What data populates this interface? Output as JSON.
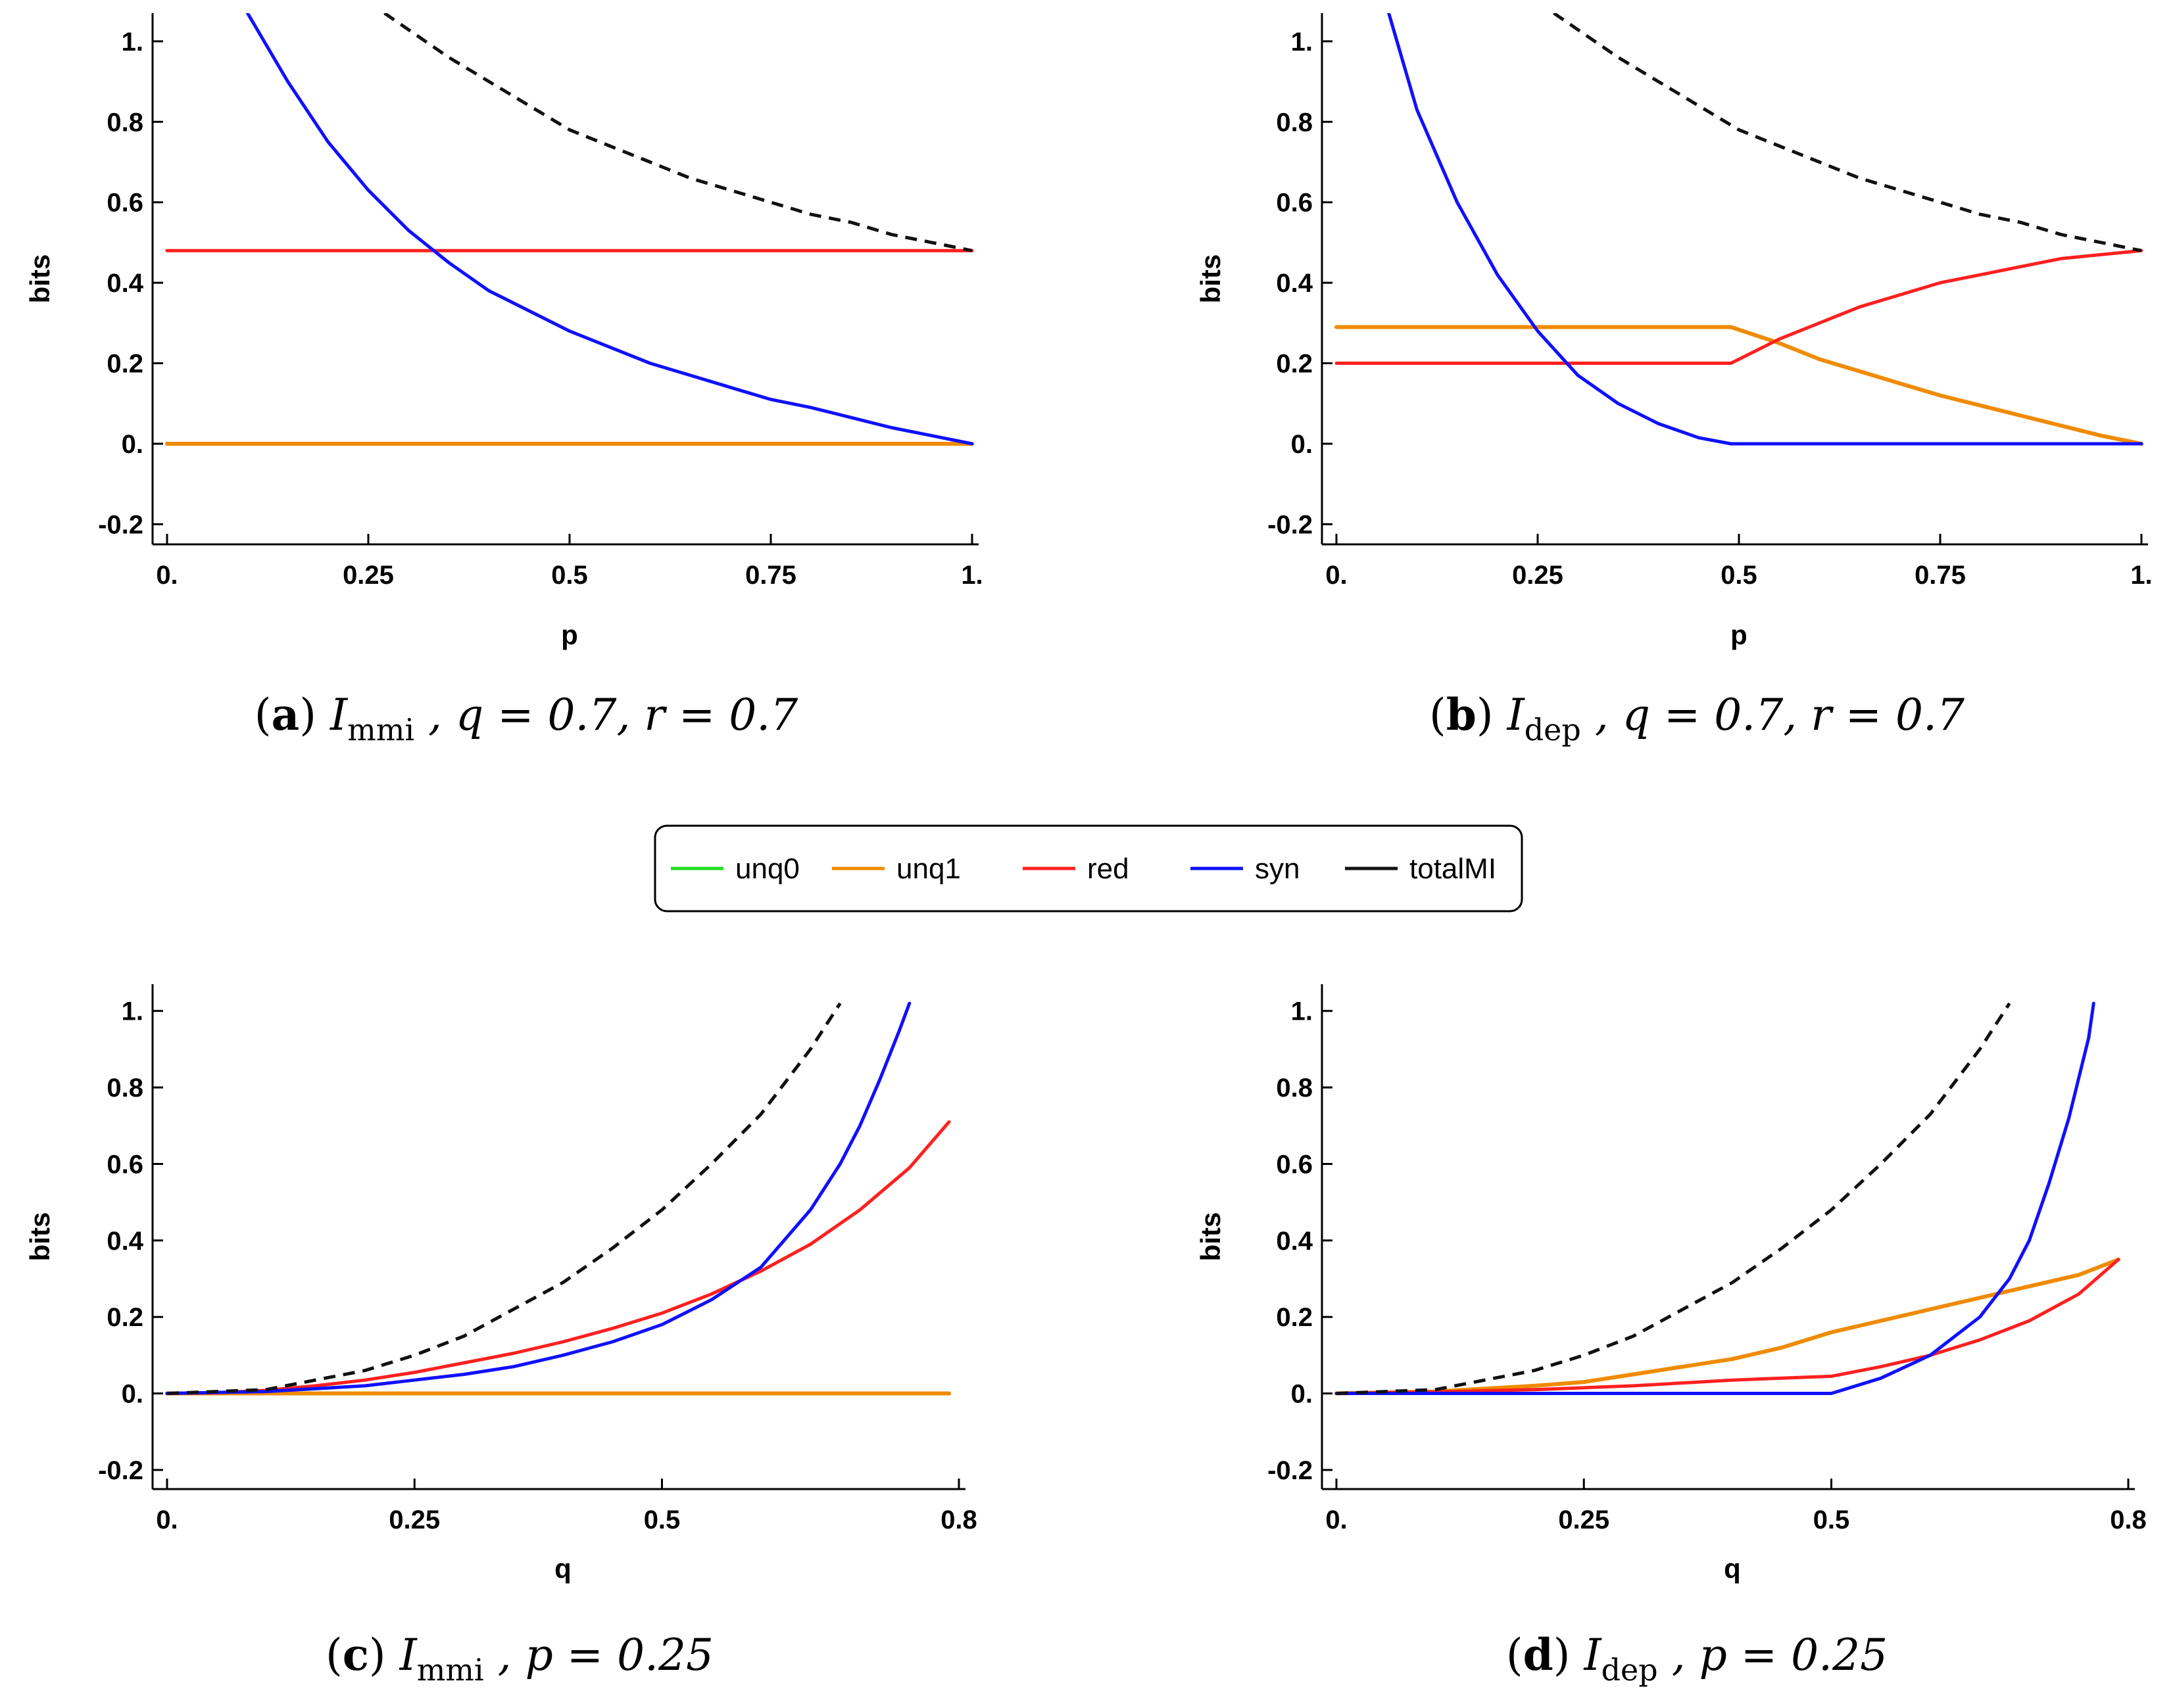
{
  "legend": [
    {
      "label": "unq0",
      "color": "#22dd22"
    },
    {
      "label": "unq1",
      "color": "#ef8b00"
    },
    {
      "label": "red",
      "color": "#ff2020"
    },
    {
      "label": "syn",
      "color": "#1010ff"
    },
    {
      "label": "totalMI",
      "color": "#111111"
    }
  ],
  "chart_data": [
    {
      "type": "line",
      "panel": "a",
      "caption": {
        "tag": "a",
        "measure": "I",
        "sub": "mmi",
        "params": ", q = 0.7, r = 0.7"
      },
      "xlabel": "p",
      "ylabel": "bits",
      "xlim": [
        0,
        1
      ],
      "ylim": [
        -0.25,
        1.07
      ],
      "xticks": [
        0,
        0.25,
        0.5,
        0.75,
        1
      ],
      "xticklabels": [
        "0.",
        "0.25",
        "0.5",
        "0.75",
        "1."
      ],
      "yticks": [
        -0.2,
        0,
        0.2,
        0.4,
        0.6,
        0.8,
        1
      ],
      "yticklabels": [
        "-0.2",
        "0.",
        "0.2",
        "0.4",
        "0.6",
        "0.8",
        "1."
      ],
      "series": [
        {
          "name": "unq1",
          "x": [
            0,
            1
          ],
          "values": [
            0,
            0
          ]
        },
        {
          "name": "red",
          "x": [
            0,
            1
          ],
          "values": [
            0.48,
            0.48
          ]
        },
        {
          "name": "syn",
          "x": [
            0.1,
            0.15,
            0.2,
            0.25,
            0.3,
            0.35,
            0.4,
            0.45,
            0.5,
            0.55,
            0.6,
            0.65,
            0.7,
            0.75,
            0.8,
            0.85,
            0.9,
            0.95,
            1.0
          ],
          "values": [
            1.07,
            0.9,
            0.75,
            0.63,
            0.53,
            0.45,
            0.38,
            0.33,
            0.28,
            0.24,
            0.2,
            0.17,
            0.14,
            0.11,
            0.09,
            0.065,
            0.04,
            0.02,
            0.0
          ]
        },
        {
          "name": "totalMI",
          "dashed": true,
          "x": [
            0.27,
            0.35,
            0.4,
            0.45,
            0.5,
            0.55,
            0.6,
            0.65,
            0.7,
            0.75,
            0.8,
            0.85,
            0.9,
            0.95,
            1.0
          ],
          "values": [
            1.07,
            0.96,
            0.9,
            0.84,
            0.78,
            0.74,
            0.7,
            0.66,
            0.63,
            0.6,
            0.57,
            0.55,
            0.52,
            0.5,
            0.48
          ]
        }
      ]
    },
    {
      "type": "line",
      "panel": "b",
      "caption": {
        "tag": "b",
        "measure": "I",
        "sub": "dep",
        "params": ", q = 0.7, r = 0.7"
      },
      "xlabel": "p",
      "ylabel": "bits",
      "xlim": [
        0,
        1
      ],
      "ylim": [
        -0.25,
        1.07
      ],
      "xticks": [
        0,
        0.25,
        0.5,
        0.75,
        1
      ],
      "xticklabels": [
        "0.",
        "0.25",
        "0.5",
        "0.75",
        "1."
      ],
      "yticks": [
        -0.2,
        0,
        0.2,
        0.4,
        0.6,
        0.8,
        1
      ],
      "yticklabels": [
        "-0.2",
        "0.",
        "0.2",
        "0.4",
        "0.6",
        "0.8",
        "1."
      ],
      "series": [
        {
          "name": "unq1",
          "x": [
            0,
            0.49,
            0.55,
            0.6,
            0.65,
            0.7,
            0.75,
            0.8,
            0.85,
            0.9,
            0.95,
            1.0
          ],
          "values": [
            0.29,
            0.29,
            0.25,
            0.21,
            0.18,
            0.15,
            0.12,
            0.095,
            0.07,
            0.045,
            0.02,
            0.0
          ]
        },
        {
          "name": "red",
          "x": [
            0,
            0.49,
            0.55,
            0.6,
            0.65,
            0.7,
            0.75,
            0.8,
            0.85,
            0.9,
            0.95,
            1.0
          ],
          "values": [
            0.2,
            0.2,
            0.26,
            0.3,
            0.34,
            0.37,
            0.4,
            0.42,
            0.44,
            0.46,
            0.47,
            0.48
          ]
        },
        {
          "name": "syn",
          "x": [
            0.065,
            0.1,
            0.15,
            0.2,
            0.25,
            0.3,
            0.35,
            0.4,
            0.45,
            0.49,
            1.0
          ],
          "values": [
            1.07,
            0.83,
            0.6,
            0.42,
            0.28,
            0.17,
            0.1,
            0.05,
            0.015,
            0.0,
            0.0
          ]
        },
        {
          "name": "totalMI",
          "dashed": true,
          "x": [
            0.27,
            0.35,
            0.4,
            0.45,
            0.5,
            0.55,
            0.6,
            0.65,
            0.7,
            0.75,
            0.8,
            0.85,
            0.9,
            0.95,
            1.0
          ],
          "values": [
            1.07,
            0.96,
            0.9,
            0.84,
            0.78,
            0.74,
            0.7,
            0.66,
            0.63,
            0.6,
            0.57,
            0.55,
            0.52,
            0.5,
            0.48
          ]
        }
      ]
    },
    {
      "type": "line",
      "panel": "c",
      "caption": {
        "tag": "c",
        "measure": "I",
        "sub": "mmi",
        "params": ", p = 0.25"
      },
      "xlabel": "q",
      "ylabel": "bits",
      "xlim": [
        0,
        0.8
      ],
      "ylim": [
        -0.25,
        1.07
      ],
      "xticks": [
        0,
        0.25,
        0.5,
        0.8
      ],
      "xticklabels": [
        "0.",
        "0.25",
        "0.5",
        "0.8"
      ],
      "yticks": [
        -0.2,
        0,
        0.2,
        0.4,
        0.6,
        0.8,
        1
      ],
      "yticklabels": [
        "-0.2",
        "0.",
        "0.2",
        "0.4",
        "0.6",
        "0.8",
        "1."
      ],
      "series": [
        {
          "name": "unq1",
          "x": [
            0,
            0.79
          ],
          "values": [
            0,
            0
          ]
        },
        {
          "name": "red",
          "x": [
            0,
            0.05,
            0.1,
            0.15,
            0.2,
            0.25,
            0.3,
            0.35,
            0.4,
            0.45,
            0.5,
            0.55,
            0.6,
            0.65,
            0.7,
            0.75,
            0.79
          ],
          "values": [
            0,
            0.002,
            0.008,
            0.02,
            0.035,
            0.055,
            0.08,
            0.105,
            0.135,
            0.17,
            0.21,
            0.26,
            0.32,
            0.39,
            0.48,
            0.59,
            0.71
          ]
        },
        {
          "name": "syn",
          "x": [
            0,
            0.1,
            0.2,
            0.25,
            0.3,
            0.35,
            0.4,
            0.45,
            0.5,
            0.55,
            0.6,
            0.65,
            0.68,
            0.7,
            0.72,
            0.74,
            0.75
          ],
          "values": [
            0,
            0.005,
            0.02,
            0.035,
            0.05,
            0.07,
            0.1,
            0.135,
            0.18,
            0.245,
            0.33,
            0.48,
            0.6,
            0.7,
            0.82,
            0.95,
            1.02
          ]
        },
        {
          "name": "totalMI",
          "dashed": true,
          "x": [
            0,
            0.1,
            0.2,
            0.25,
            0.3,
            0.35,
            0.4,
            0.45,
            0.5,
            0.55,
            0.6,
            0.65,
            0.68
          ],
          "values": [
            0,
            0.01,
            0.06,
            0.1,
            0.15,
            0.22,
            0.29,
            0.38,
            0.48,
            0.6,
            0.73,
            0.9,
            1.02
          ]
        }
      ]
    },
    {
      "type": "line",
      "panel": "d",
      "caption": {
        "tag": "d",
        "measure": "I",
        "sub": "dep",
        "params": ", p = 0.25"
      },
      "xlabel": "q",
      "ylabel": "bits",
      "xlim": [
        0,
        0.8
      ],
      "ylim": [
        -0.25,
        1.07
      ],
      "xticks": [
        0,
        0.25,
        0.5,
        0.8
      ],
      "xticklabels": [
        "0.",
        "0.25",
        "0.5",
        "0.8"
      ],
      "yticks": [
        -0.2,
        0,
        0.2,
        0.4,
        0.6,
        0.8,
        1
      ],
      "yticklabels": [
        "-0.2",
        "0.",
        "0.2",
        "0.4",
        "0.6",
        "0.8",
        "1."
      ],
      "series": [
        {
          "name": "unq1",
          "x": [
            0,
            0.1,
            0.2,
            0.25,
            0.3,
            0.35,
            0.4,
            0.45,
            0.5,
            0.55,
            0.6,
            0.65,
            0.7,
            0.75,
            0.79
          ],
          "values": [
            0,
            0.005,
            0.02,
            0.03,
            0.05,
            0.07,
            0.09,
            0.12,
            0.16,
            0.19,
            0.22,
            0.25,
            0.28,
            0.31,
            0.35
          ]
        },
        {
          "name": "red",
          "x": [
            0,
            0.1,
            0.2,
            0.3,
            0.4,
            0.5,
            0.55,
            0.6,
            0.65,
            0.7,
            0.75,
            0.79
          ],
          "values": [
            0,
            0.004,
            0.01,
            0.02,
            0.035,
            0.045,
            0.07,
            0.1,
            0.14,
            0.19,
            0.26,
            0.35
          ]
        },
        {
          "name": "syn",
          "x": [
            0,
            0.5,
            0.55,
            0.6,
            0.65,
            0.68,
            0.7,
            0.72,
            0.74,
            0.76,
            0.765
          ],
          "values": [
            0,
            0,
            0.04,
            0.1,
            0.2,
            0.3,
            0.4,
            0.55,
            0.72,
            0.93,
            1.02
          ]
        },
        {
          "name": "totalMI",
          "dashed": true,
          "x": [
            0,
            0.1,
            0.2,
            0.25,
            0.3,
            0.35,
            0.4,
            0.45,
            0.5,
            0.55,
            0.6,
            0.65,
            0.68
          ],
          "values": [
            0,
            0.01,
            0.06,
            0.1,
            0.15,
            0.22,
            0.29,
            0.38,
            0.48,
            0.6,
            0.73,
            0.9,
            1.02
          ]
        }
      ]
    }
  ]
}
